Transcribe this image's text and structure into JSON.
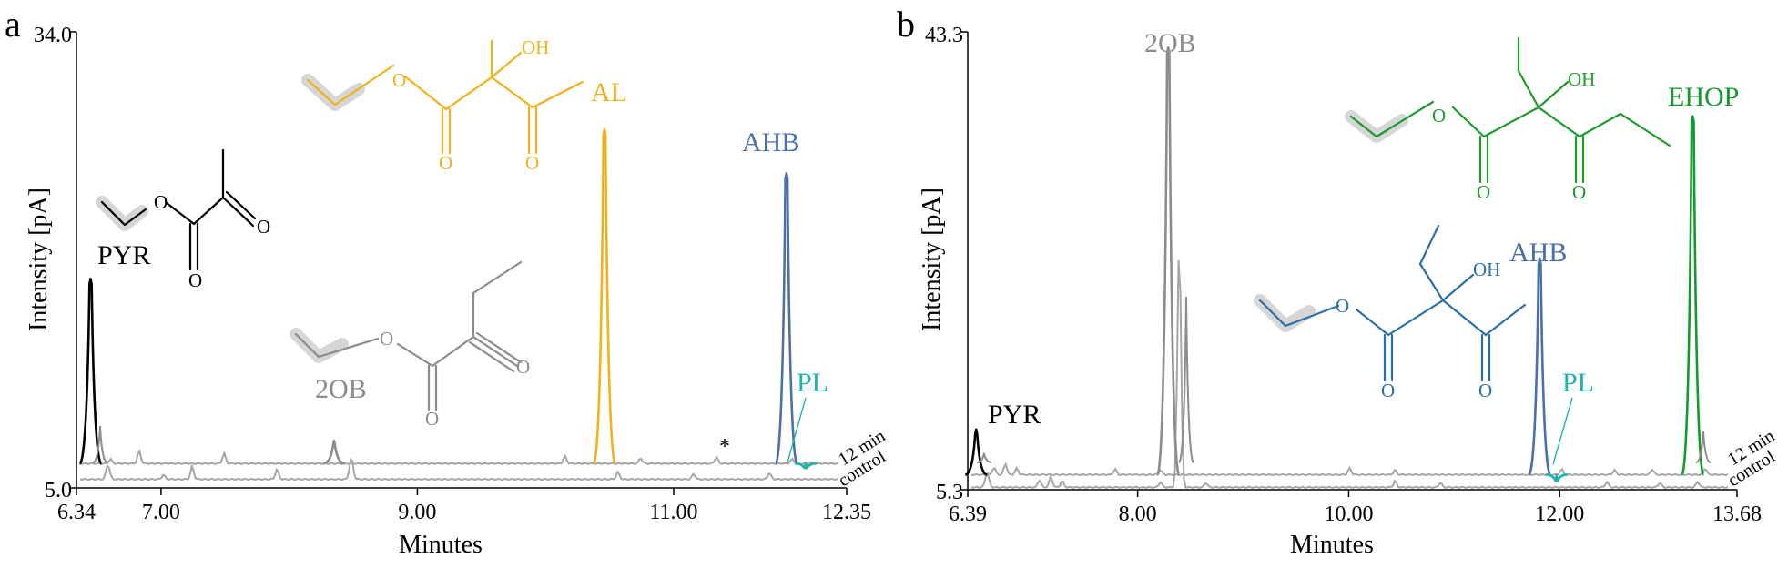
{
  "chart_data": [
    {
      "panel": "a",
      "type": "line",
      "xlabel": "Minutes",
      "ylabel": "Intensity [pA]",
      "xlim": [
        6.34,
        12.35
      ],
      "ylim": [
        5.0,
        34.0
      ],
      "y_tick_labels": [
        "34.0",
        "5.0"
      ],
      "x_tick_labels": [
        "6.34",
        "7.00",
        "9.00",
        "11.00",
        "12.35"
      ],
      "x_ticks": [
        6.34,
        7.0,
        9.0,
        11.0,
        12.35
      ],
      "trace_labels": [
        "12 min",
        "control"
      ],
      "peaks": [
        {
          "label": "PYR",
          "x": 6.45,
          "y": 18.3,
          "color": "#000000"
        },
        {
          "label": "2OB",
          "x": 8.35,
          "y": 8.0,
          "color": "#8c8c8c"
        },
        {
          "label": "AL",
          "x": 10.46,
          "y": 27.8,
          "color": "#f2b21c"
        },
        {
          "label": "AHB",
          "x": 11.88,
          "y": 25.0,
          "color": "#4a6fad"
        },
        {
          "label": "PL",
          "x": 12.03,
          "y": 6.6,
          "color": "#21b5ac"
        }
      ],
      "annotations": [
        "*"
      ],
      "series": [
        {
          "name": "12 min",
          "color": "#a6a6a6",
          "baseline": 6.55
        },
        {
          "name": "control",
          "color": "#a6a6a6",
          "baseline": 5.55
        }
      ],
      "molecules": [
        {
          "color": "#000000",
          "atoms": [
            "O",
            "O",
            "O"
          ]
        },
        {
          "color": "#f2b21c",
          "atoms": [
            "O",
            "OH",
            "O",
            "O"
          ]
        },
        {
          "color": "#8c8c8c",
          "atoms": [
            "O",
            "O",
            "O"
          ]
        }
      ]
    },
    {
      "panel": "b",
      "type": "line",
      "xlabel": "Minutes",
      "ylabel": "Intensity [pA]",
      "xlim": [
        6.39,
        13.68
      ],
      "ylim": [
        5.3,
        43.3
      ],
      "y_tick_labels": [
        "43.3",
        "5.3"
      ],
      "x_tick_labels": [
        "6.39",
        "8.00",
        "10.00",
        "12.00",
        "13.68"
      ],
      "x_ticks": [
        6.39,
        8.0,
        10.0,
        12.0,
        13.68
      ],
      "trace_labels": [
        "12 min",
        "control"
      ],
      "peaks": [
        {
          "label": "PYR",
          "x": 6.47,
          "y": 10.3,
          "color": "#000000"
        },
        {
          "label": "2OB",
          "x": 8.29,
          "y": 42.0,
          "color": "#8c8c8c"
        },
        {
          "label": "AHB",
          "x": 11.81,
          "y": 24.5,
          "color": "#4a6fad"
        },
        {
          "label": "PL",
          "x": 11.97,
          "y": 6.5,
          "color": "#21b5ac"
        },
        {
          "label": "EHOP",
          "x": 13.26,
          "y": 36.3,
          "color": "#139a2b"
        }
      ],
      "series": [
        {
          "name": "12 min",
          "color": "#a6a6a6",
          "baseline": 6.55
        },
        {
          "name": "control",
          "color": "#a6a6a6",
          "baseline": 5.5
        }
      ],
      "molecules": [
        {
          "color": "#1f9a2c",
          "atoms": [
            "O",
            "OH",
            "O",
            "O"
          ]
        },
        {
          "color": "#2a70a8",
          "atoms": [
            "O",
            "OH",
            "O",
            "O"
          ]
        }
      ]
    }
  ]
}
